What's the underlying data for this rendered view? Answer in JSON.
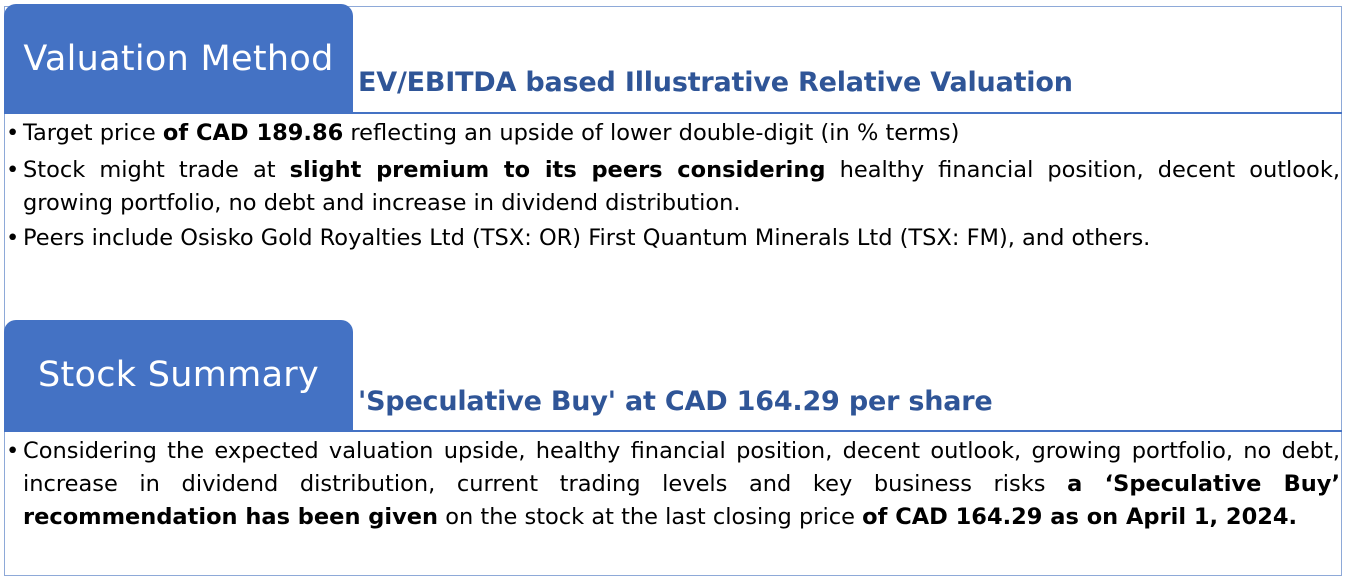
{
  "valuation": {
    "tab_label": "Valuation Method",
    "subheading": "EV/EBITDA based Illustrative Relative Valuation",
    "bullets": [
      {
        "t1": "Target price ",
        "b1": "of CAD 189.86",
        "t2": " reflecting an upside of lower double-digit (in % terms)"
      },
      {
        "t1": "Stock might trade at ",
        "b1": "slight premium to its peers considering",
        "t2": " healthy financial position, decent outlook, growing portfolio, no debt and increase in dividend distribution."
      },
      {
        "t1": "Peers include Osisko Gold Royalties Ltd (TSX: OR) First Quantum Minerals Ltd (TSX: FM), and others."
      }
    ]
  },
  "summary": {
    "tab_label": "Stock Summary",
    "subheading": "'Speculative Buy' at CAD 164.29 per share",
    "bullet": {
      "t1": "Considering the expected valuation upside, healthy financial position, decent outlook, growing portfolio, no debt, increase in dividend distribution, current trading levels and key business risks ",
      "b1": "a ‘Speculative Buy’ recommendation has been given",
      "t2": " on the stock at the last closing price ",
      "b2": "of CAD 164.29 as on April 1, 2024."
    }
  },
  "bullet_char": "•",
  "colors": {
    "tab_fill": "#4472c4",
    "subheading": "#2f5597",
    "rule": "#4472c4",
    "frame": "#8ea9d8"
  }
}
